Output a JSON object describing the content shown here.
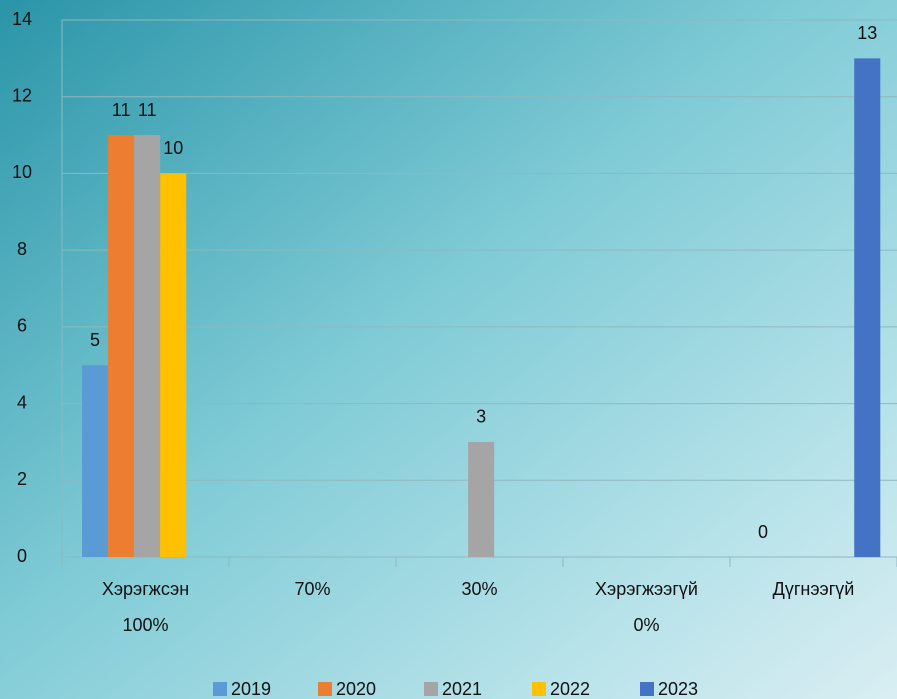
{
  "chart_data": {
    "type": "bar",
    "categories": [
      [
        "Хэрэгжсэн",
        "100%"
      ],
      [
        "70%"
      ],
      [
        "30%"
      ],
      [
        "Хэрэгжээгүй",
        "0%"
      ],
      [
        "Дүгнээгүй"
      ]
    ],
    "series": [
      {
        "name": "2019",
        "color": "#5b9bd5",
        "values": [
          5,
          null,
          null,
          null,
          0
        ]
      },
      {
        "name": "2020",
        "color": "#ed7d31",
        "values": [
          11,
          null,
          null,
          null,
          null
        ]
      },
      {
        "name": "2021",
        "color": "#a5a5a5",
        "values": [
          11,
          null,
          3,
          null,
          null
        ]
      },
      {
        "name": "2022",
        "color": "#ffc000",
        "values": [
          10,
          null,
          null,
          null,
          null
        ]
      },
      {
        "name": "2023",
        "color": "#4472c4",
        "values": [
          null,
          null,
          null,
          null,
          13
        ]
      }
    ],
    "ylim": [
      0,
      14
    ],
    "yticks": [
      0,
      2,
      4,
      6,
      8,
      10,
      12,
      14
    ],
    "grid": true,
    "legend": "bottom"
  }
}
